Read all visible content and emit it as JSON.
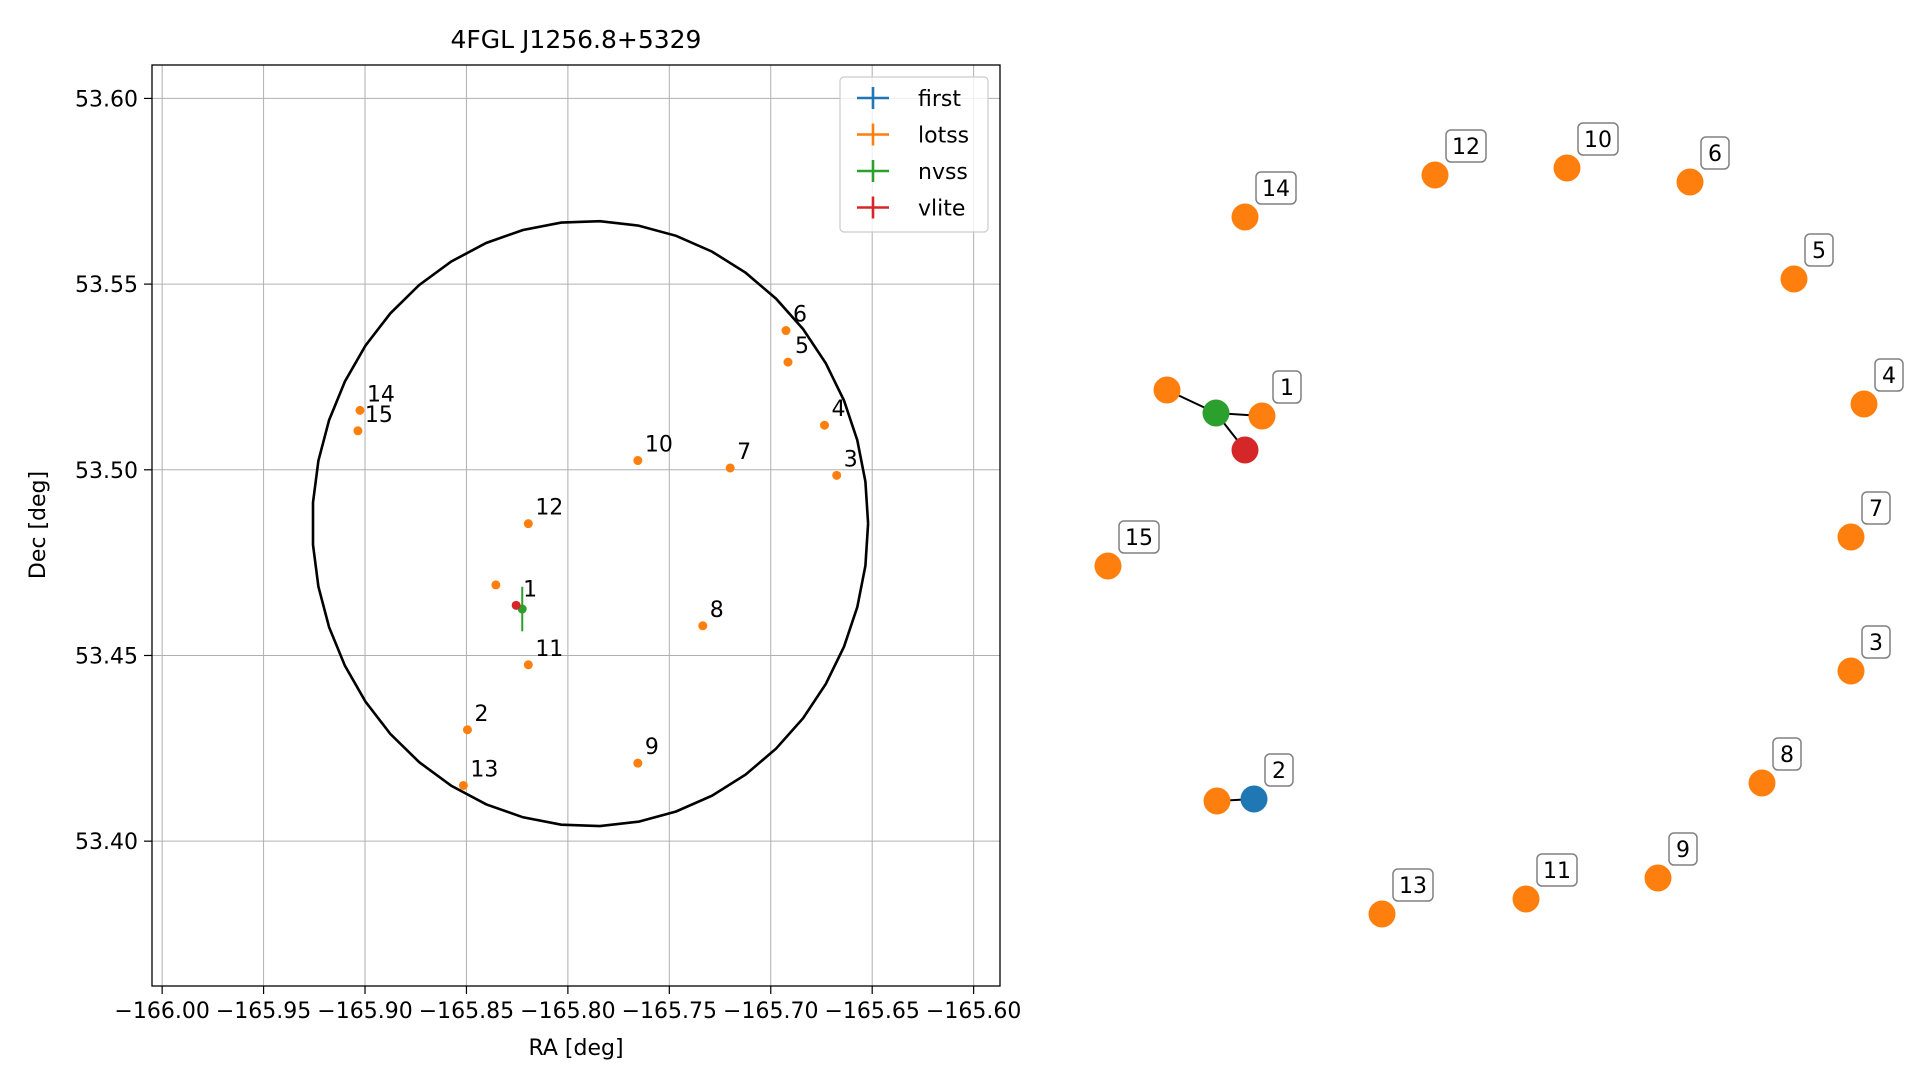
{
  "chart_data": [
    {
      "type": "scatter",
      "title": "4FGL J1256.8+5329",
      "xlabel": "RA [deg]",
      "ylabel": "Dec [deg]",
      "xlim": [
        -166.005,
        -165.587
      ],
      "ylim": [
        53.361,
        53.609
      ],
      "x_ticks": [
        -166.0,
        -165.95,
        -165.9,
        -165.85,
        -165.8,
        -165.75,
        -165.7,
        -165.65,
        -165.6
      ],
      "x_tick_labels": [
        "−166.00",
        "−165.95",
        "−165.90",
        "−165.85",
        "−165.80",
        "−165.75",
        "−165.70",
        "−165.65",
        "−165.60"
      ],
      "y_ticks": [
        53.4,
        53.45,
        53.5,
        53.55,
        53.6
      ],
      "y_tick_labels": [
        "53.40",
        "53.45",
        "53.50",
        "53.55",
        "53.60"
      ],
      "grid": true,
      "legend_position": "top-right",
      "legend": [
        {
          "name": "first",
          "color": "#1f77b4"
        },
        {
          "name": "lotss",
          "color": "#ff7f0e"
        },
        {
          "name": "nvss",
          "color": "#2ca02c"
        },
        {
          "name": "vlite",
          "color": "#d62728"
        }
      ],
      "circle": {
        "center": [
          -165.789,
          53.4855
        ],
        "radius_dec_deg": 0.0815,
        "color": "#000000"
      },
      "series": [
        {
          "name": "lotss",
          "color": "#ff7f0e",
          "points": [
            {
              "id": "1",
              "x": -165.8355,
              "y": 53.469
            },
            {
              "id": "2",
              "x": -165.8495,
              "y": 53.43
            },
            {
              "id": "3",
              "x": -165.6675,
              "y": 53.4985
            },
            {
              "id": "4",
              "x": -165.6735,
              "y": 53.512
            },
            {
              "id": "5",
              "x": -165.6915,
              "y": 53.529
            },
            {
              "id": "6",
              "x": -165.6925,
              "y": 53.5375
            },
            {
              "id": "7",
              "x": -165.72,
              "y": 53.5005
            },
            {
              "id": "8",
              "x": -165.7335,
              "y": 53.458
            },
            {
              "id": "9",
              "x": -165.7655,
              "y": 53.421
            },
            {
              "id": "10",
              "x": -165.7655,
              "y": 53.5025
            },
            {
              "id": "11",
              "x": -165.8195,
              "y": 53.4475
            },
            {
              "id": "12",
              "x": -165.8195,
              "y": 53.4855
            },
            {
              "id": "13",
              "x": -165.8515,
              "y": 53.415
            },
            {
              "id": "14",
              "x": -165.9025,
              "y": 53.516
            },
            {
              "id": "15",
              "x": -165.9035,
              "y": 53.5105
            }
          ]
        },
        {
          "name": "nvss",
          "color": "#2ca02c",
          "points": [
            {
              "x": -165.8225,
              "y": 53.4625,
              "xerr": 0.0015,
              "yerr": 0.006
            }
          ]
        },
        {
          "name": "vlite",
          "color": "#d62728",
          "points": [
            {
              "x": -165.8255,
              "y": 53.4635,
              "xerr": 0.001,
              "yerr": 0.001
            }
          ]
        }
      ],
      "point_labels": [
        {
          "text": "1",
          "x": -165.8255,
          "y": 53.4635
        },
        {
          "text": "2",
          "x": -165.8495,
          "y": 53.43
        },
        {
          "text": "3",
          "x": -165.6675,
          "y": 53.4985
        },
        {
          "text": "4",
          "x": -165.6735,
          "y": 53.512
        },
        {
          "text": "5",
          "x": -165.6915,
          "y": 53.529
        },
        {
          "text": "6",
          "x": -165.6925,
          "y": 53.5375
        },
        {
          "text": "7",
          "x": -165.72,
          "y": 53.5005
        },
        {
          "text": "8",
          "x": -165.7335,
          "y": 53.458
        },
        {
          "text": "9",
          "x": -165.7655,
          "y": 53.421
        },
        {
          "text": "10",
          "x": -165.7655,
          "y": 53.5025
        },
        {
          "text": "11",
          "x": -165.8195,
          "y": 53.4475
        },
        {
          "text": "12",
          "x": -165.8195,
          "y": 53.4855
        },
        {
          "text": "13",
          "x": -165.8515,
          "y": 53.415
        },
        {
          "text": "14",
          "x": -165.9025,
          "y": 53.516
        },
        {
          "text": "15",
          "x": -165.9035,
          "y": 53.5105
        }
      ]
    },
    {
      "type": "graph",
      "nodes": [
        {
          "id": "lotss-1",
          "label": "1",
          "color": "#ff7f0e"
        },
        {
          "id": "lotss-1b",
          "label": "",
          "color": "#ff7f0e"
        },
        {
          "id": "nvss-1",
          "label": "",
          "color": "#2ca02c"
        },
        {
          "id": "vlite-1",
          "label": "",
          "color": "#d62728"
        },
        {
          "id": "lotss-2",
          "label": "",
          "color": "#ff7f0e"
        },
        {
          "id": "first-2",
          "label": "2",
          "color": "#1f77b4"
        },
        {
          "id": "lotss-3",
          "label": "3",
          "color": "#ff7f0e"
        },
        {
          "id": "lotss-4",
          "label": "4",
          "color": "#ff7f0e"
        },
        {
          "id": "lotss-5",
          "label": "5",
          "color": "#ff7f0e"
        },
        {
          "id": "lotss-6",
          "label": "6",
          "color": "#ff7f0e"
        },
        {
          "id": "lotss-7",
          "label": "7",
          "color": "#ff7f0e"
        },
        {
          "id": "lotss-8",
          "label": "8",
          "color": "#ff7f0e"
        },
        {
          "id": "lotss-9",
          "label": "9",
          "color": "#ff7f0e"
        },
        {
          "id": "lotss-10",
          "label": "10",
          "color": "#ff7f0e"
        },
        {
          "id": "lotss-11",
          "label": "11",
          "color": "#ff7f0e"
        },
        {
          "id": "lotss-12",
          "label": "12",
          "color": "#ff7f0e"
        },
        {
          "id": "lotss-13",
          "label": "13",
          "color": "#ff7f0e"
        },
        {
          "id": "lotss-14",
          "label": "14",
          "color": "#ff7f0e"
        },
        {
          "id": "lotss-15",
          "label": "15",
          "color": "#ff7f0e"
        }
      ],
      "edges": [
        [
          "lotss-1b",
          "nvss-1"
        ],
        [
          "nvss-1",
          "lotss-1"
        ],
        [
          "nvss-1",
          "vlite-1"
        ],
        [
          "lotss-2",
          "first-2"
        ]
      ]
    }
  ]
}
